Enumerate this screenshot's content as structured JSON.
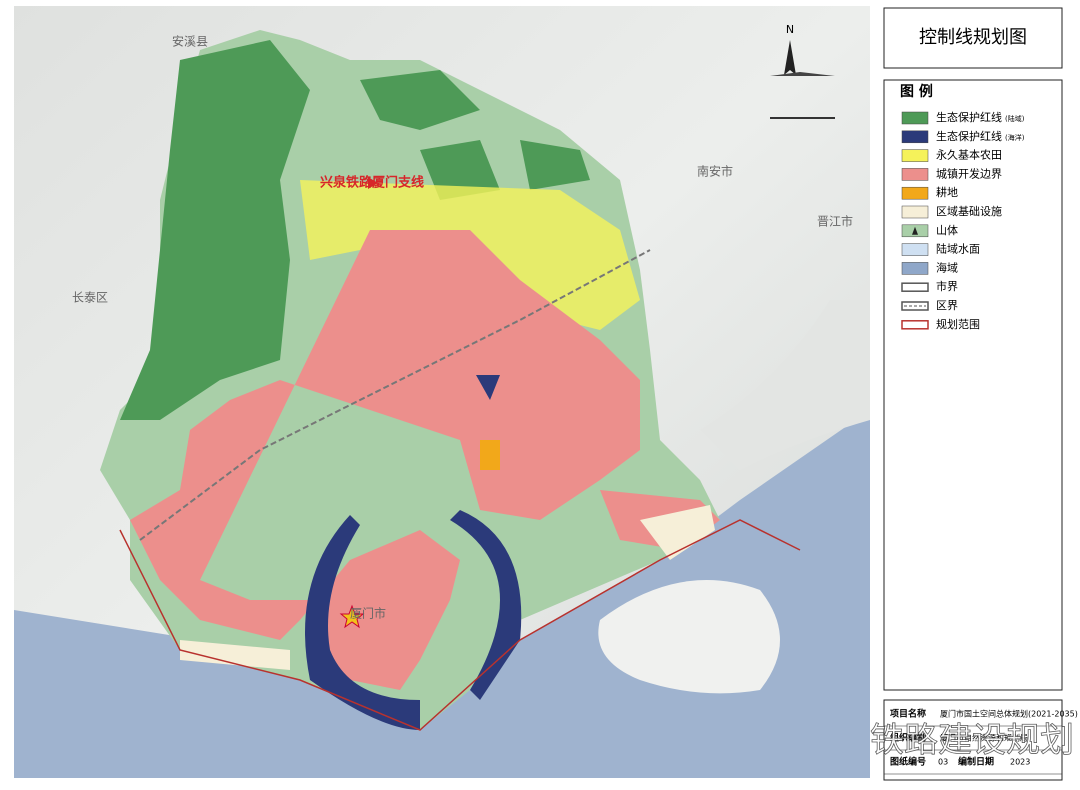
{
  "header": {
    "title": "控制线规划图"
  },
  "legend": {
    "title": "图 例",
    "items": [
      {
        "label": "生态保护红线",
        "note": "(陆域)",
        "color": "#4e9a57",
        "kind": "fill"
      },
      {
        "label": "生态保护红线",
        "note": "(海洋)",
        "color": "#2b3a7a",
        "kind": "fill"
      },
      {
        "label": "永久基本农田",
        "color": "#f5f25a",
        "kind": "fill"
      },
      {
        "label": "城镇开发边界",
        "color": "#ec8f8c",
        "kind": "fill"
      },
      {
        "label": "耕地",
        "color": "#f2a81a",
        "kind": "fill"
      },
      {
        "label": "区域基础设施",
        "color": "#f6efd8",
        "kind": "fill"
      },
      {
        "label": "山体",
        "color": "#a9cfa8",
        "kind": "hill"
      },
      {
        "label": "陆域水面",
        "color": "#cfe0f2",
        "kind": "fill"
      },
      {
        "label": "海域",
        "color": "#8fa7c9",
        "kind": "fill"
      },
      {
        "label": "市界",
        "color": "#555555",
        "kind": "line-double"
      },
      {
        "label": "区界",
        "color": "#555555",
        "kind": "line-dash"
      },
      {
        "label": "规划范围",
        "color": "#b8322e",
        "kind": "line-double"
      }
    ]
  },
  "map": {
    "north": "N",
    "rail_label": "兴泉铁路厦门支线",
    "places": [
      "安溪县",
      "南安市",
      "晋江市",
      "长泰区",
      "厦门市"
    ]
  },
  "title_block": {
    "rows": [
      [
        "项目名称",
        "厦门市国土空间总体规划(2021-2035)"
      ],
      [
        "组织编制",
        "厦门市自然资源和规划局"
      ],
      [
        "图纸编号",
        "03",
        "编制日期",
        "2023"
      ]
    ]
  },
  "watermark": "铁路建设规划"
}
